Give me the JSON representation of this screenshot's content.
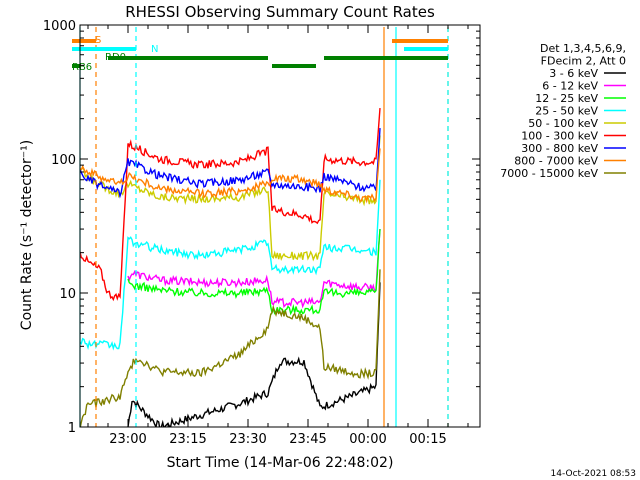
{
  "chart_data": {
    "type": "line",
    "title": "RHESSI Observing Summary Count Rates",
    "xlabel": "Start Time (14-Mar-06 22:48:02)",
    "ylabel": "Count Rate (s⁻¹ detector⁻¹)",
    "footer": "14-Oct-2021 08:53",
    "x_unit": "minutes since 22:48:02",
    "xlim": [
      0,
      100
    ],
    "ylim": [
      1,
      1000
    ],
    "yscale": "log",
    "x_ticks": [
      {
        "x": 12,
        "label": "23:00"
      },
      {
        "x": 27,
        "label": "23:15"
      },
      {
        "x": 42,
        "label": "23:30"
      },
      {
        "x": 57,
        "label": "23:45"
      },
      {
        "x": 72,
        "label": "00:00"
      },
      {
        "x": 87,
        "label": "00:15"
      }
    ],
    "y_ticks": [
      {
        "y": 1,
        "label": "1"
      },
      {
        "y": 10,
        "label": "10"
      },
      {
        "y": 100,
        "label": "100"
      },
      {
        "y": 1000,
        "label": "1000"
      }
    ],
    "legend_header": [
      "Det 1,3,4,5,6,9,",
      "FDecim 2, Att 0"
    ],
    "legend_position": "right",
    "series": [
      {
        "name": "3 - 6 keV",
        "color": "#000000",
        "points": [
          [
            12,
            1.0
          ],
          [
            13,
            1.6
          ],
          [
            16,
            1.3
          ],
          [
            20,
            1.0
          ],
          [
            40,
            1.5
          ],
          [
            47,
            1.8
          ],
          [
            50,
            3.1
          ],
          [
            56,
            3.1
          ],
          [
            60,
            1.4
          ],
          [
            68,
            1.7
          ],
          [
            74,
            2.0
          ],
          [
            75,
            12
          ]
        ]
      },
      {
        "name": "6 - 12 keV",
        "color": "#ff00ff",
        "points": [
          [
            12,
            13
          ],
          [
            13,
            14
          ],
          [
            20,
            12.5
          ],
          [
            30,
            12
          ],
          [
            40,
            12
          ],
          [
            47,
            12.5
          ],
          [
            48,
            8.5
          ],
          [
            56,
            8.5
          ],
          [
            60,
            8.5
          ],
          [
            61,
            12
          ],
          [
            70,
            11
          ],
          [
            74,
            11
          ],
          [
            75,
            30
          ]
        ]
      },
      {
        "name": "12 - 25 keV",
        "color": "#00ff00",
        "points": [
          [
            12,
            12
          ],
          [
            13,
            11.5
          ],
          [
            20,
            10.5
          ],
          [
            30,
            10
          ],
          [
            40,
            10
          ],
          [
            47,
            10.5
          ],
          [
            48,
            7.5
          ],
          [
            56,
            7.5
          ],
          [
            60,
            7.5
          ],
          [
            61,
            10
          ],
          [
            70,
            10
          ],
          [
            74,
            10
          ],
          [
            75,
            30
          ]
        ]
      },
      {
        "name": "25 - 50 keV",
        "color": "#00ffff",
        "points": [
          [
            0,
            4.5
          ],
          [
            2,
            4.2
          ],
          [
            10,
            4.0
          ],
          [
            12,
            25
          ],
          [
            13,
            24
          ],
          [
            20,
            21
          ],
          [
            30,
            19
          ],
          [
            40,
            21
          ],
          [
            47,
            24
          ],
          [
            48,
            15
          ],
          [
            56,
            15
          ],
          [
            60,
            15
          ],
          [
            61,
            22
          ],
          [
            70,
            21
          ],
          [
            74,
            20
          ],
          [
            75,
            70
          ]
        ]
      },
      {
        "name": "50 - 100 keV",
        "color": "#cccc00",
        "points": [
          [
            0,
            85
          ],
          [
            2,
            72
          ],
          [
            7,
            60
          ],
          [
            10,
            55
          ],
          [
            12,
            65
          ],
          [
            20,
            52
          ],
          [
            30,
            50
          ],
          [
            40,
            52
          ],
          [
            47,
            60
          ],
          [
            48,
            19
          ],
          [
            56,
            19
          ],
          [
            60,
            19
          ],
          [
            61,
            55
          ],
          [
            70,
            50
          ],
          [
            74,
            48
          ],
          [
            75,
            150
          ]
        ]
      },
      {
        "name": "100 - 300 keV",
        "color": "#ff0000",
        "points": [
          [
            0,
            20
          ],
          [
            2,
            17
          ],
          [
            5,
            15
          ],
          [
            7,
            10
          ],
          [
            10,
            9
          ],
          [
            12,
            130
          ],
          [
            20,
            100
          ],
          [
            30,
            90
          ],
          [
            40,
            95
          ],
          [
            47,
            115
          ],
          [
            48,
            42
          ],
          [
            56,
            38
          ],
          [
            60,
            33
          ],
          [
            61,
            100
          ],
          [
            70,
            95
          ],
          [
            74,
            95
          ],
          [
            75,
            240
          ]
        ]
      },
      {
        "name": "300 - 800 keV",
        "color": "#0000ff",
        "points": [
          [
            0,
            80
          ],
          [
            2,
            70
          ],
          [
            7,
            60
          ],
          [
            10,
            55
          ],
          [
            12,
            95
          ],
          [
            20,
            75
          ],
          [
            30,
            65
          ],
          [
            40,
            70
          ],
          [
            47,
            80
          ],
          [
            48,
            65
          ],
          [
            56,
            62
          ],
          [
            60,
            60
          ],
          [
            61,
            75
          ],
          [
            70,
            62
          ],
          [
            74,
            60
          ],
          [
            75,
            170
          ]
        ]
      },
      {
        "name": "800 - 7000 keV",
        "color": "#ff8000",
        "points": [
          [
            0,
            90
          ],
          [
            2,
            80
          ],
          [
            7,
            70
          ],
          [
            10,
            65
          ],
          [
            12,
            75
          ],
          [
            20,
            60
          ],
          [
            30,
            55
          ],
          [
            40,
            58
          ],
          [
            47,
            65
          ],
          [
            48,
            72
          ],
          [
            56,
            70
          ],
          [
            60,
            65
          ],
          [
            61,
            60
          ],
          [
            70,
            52
          ],
          [
            74,
            50
          ],
          [
            75,
            120
          ]
        ]
      },
      {
        "name": "7000 - 15000 keV",
        "color": "#808000",
        "points": [
          [
            0,
            1.0
          ],
          [
            2,
            1.5
          ],
          [
            4,
            1.5
          ],
          [
            10,
            1.7
          ],
          [
            12,
            2.5
          ],
          [
            14,
            3.3
          ],
          [
            20,
            2.6
          ],
          [
            30,
            2.5
          ],
          [
            40,
            3.5
          ],
          [
            47,
            5.5
          ],
          [
            48,
            7.5
          ],
          [
            56,
            6.5
          ],
          [
            60,
            5.5
          ],
          [
            61,
            2.8
          ],
          [
            70,
            2.5
          ],
          [
            74,
            2.5
          ],
          [
            75,
            15
          ]
        ]
      }
    ],
    "state_bars": [
      {
        "name": "S",
        "color": "#ff8000",
        "segments": [
          [
            -2,
            4
          ],
          [
            78,
            92
          ]
        ]
      },
      {
        "name": "N",
        "color": "#00ffff",
        "segments": [
          [
            -2,
            14
          ],
          [
            81,
            92
          ]
        ]
      },
      {
        "name": "RD0",
        "color": "#008000",
        "segments": [
          [
            7,
            47
          ],
          [
            61,
            92
          ]
        ]
      },
      {
        "name": "RB6",
        "color": "#008000",
        "segments": [
          [
            -2,
            0
          ],
          [
            48,
            59
          ]
        ]
      }
    ],
    "vertical_markers": [
      {
        "x": 0,
        "color": "#00ffff",
        "dashed": false
      },
      {
        "x": 4,
        "color": "#ff8000",
        "dashed": true
      },
      {
        "x": 14,
        "color": "#00ffff",
        "dashed": true
      },
      {
        "x": 76,
        "color": "#ff8000",
        "dashed": false
      },
      {
        "x": 79,
        "color": "#00ffff",
        "dashed": false
      },
      {
        "x": 92,
        "color": "#ff8000",
        "dashed": true
      },
      {
        "x": 92,
        "color": "#00ffff",
        "dashed": true
      }
    ]
  }
}
